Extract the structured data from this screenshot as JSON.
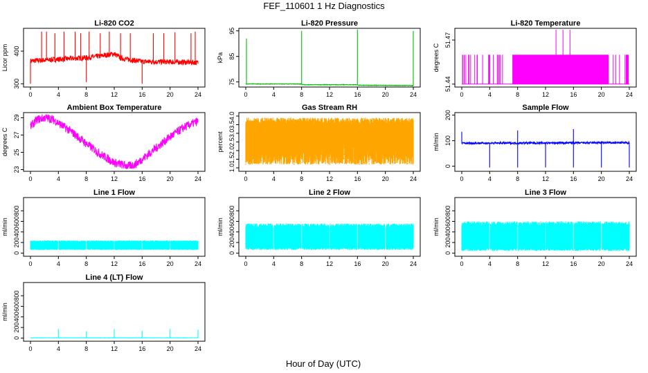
{
  "title": "FEF_110601  1 Hz Diagnostics",
  "xlabel_common": "Hour of Day (UTC)",
  "chart_data": [
    {
      "type": "line",
      "title": "Li-820 CO2",
      "ylabel": "Licor ppm",
      "xlim": [
        0,
        24
      ],
      "ylim": [
        290,
        470
      ],
      "yticks": [
        300,
        400
      ],
      "xticks": [
        0,
        4,
        8,
        12,
        16,
        20,
        24
      ],
      "color": "#ff0000",
      "series": [
        {
          "base": [
            [
              0,
              370
            ],
            [
              4,
              375
            ],
            [
              8,
              380
            ],
            [
              10,
              385
            ],
            [
              12,
              392
            ],
            [
              13,
              378
            ],
            [
              16,
              368
            ],
            [
              20,
              367
            ],
            [
              24,
              365
            ]
          ],
          "noise": 8,
          "spikes": [
            [
              1.6,
              460
            ],
            [
              2.3,
              460
            ],
            [
              3.5,
              455
            ],
            [
              4.8,
              460
            ],
            [
              6.4,
              460
            ],
            [
              7.2,
              455
            ],
            [
              8.4,
              460
            ],
            [
              10,
              455
            ],
            [
              11.3,
              460
            ],
            [
              12.9,
              455
            ],
            [
              14.3,
              455
            ],
            [
              17.6,
              455
            ],
            [
              19.1,
              455
            ],
            [
              20.7,
              458
            ],
            [
              23,
              455
            ],
            [
              23.6,
              460
            ]
          ],
          "dips": [
            [
              0,
              300
            ],
            [
              8,
              305
            ],
            [
              16,
              300
            ]
          ]
        }
      ]
    },
    {
      "type": "line",
      "title": "Li-820 Pressure",
      "ylabel": "kPa",
      "xlim": [
        0,
        24
      ],
      "ylim": [
        73,
        96
      ],
      "yticks": [
        75,
        85,
        95
      ],
      "xticks": [
        0,
        4,
        8,
        12,
        16,
        20,
        24
      ],
      "color": "#00c000",
      "series": [
        {
          "base": [
            [
              0,
              74.2
            ],
            [
              8,
              74.2
            ],
            [
              8.1,
              73.9
            ],
            [
              16,
              73.9
            ],
            [
              16.2,
              73.7
            ],
            [
              23.5,
              73.6
            ],
            [
              24,
              73.5
            ]
          ],
          "noise": 0.1,
          "spikes": [
            [
              0.1,
              92
            ],
            [
              8,
              95
            ],
            [
              16,
              95.5
            ],
            [
              24,
              95
            ]
          ],
          "dips": []
        }
      ]
    },
    {
      "type": "line",
      "title": "Li-820 Temperature",
      "ylabel": "degrees C",
      "xlim": [
        0,
        24
      ],
      "ylim": [
        51.438,
        51.478
      ],
      "yticks": [
        51.44,
        51.47
      ],
      "xticks": [
        0,
        4,
        8,
        12,
        16,
        20,
        24
      ],
      "color": "#ff00ff",
      "series": [
        {
          "mode": "toggle",
          "low": 51.44,
          "high": 51.46,
          "dense": [
            [
              7.3,
              21
            ]
          ],
          "extra_high": [
            [
              13.5,
              51.477
            ],
            [
              14.5,
              51.477
            ],
            [
              15.5,
              51.477
            ]
          ]
        }
      ]
    },
    {
      "type": "line",
      "title": "Ambient Box Temperature",
      "ylabel": "degrees C",
      "xlim": [
        0,
        24
      ],
      "ylim": [
        22.8,
        29.6
      ],
      "yticks": [
        23,
        25,
        27,
        29
      ],
      "xticks": [
        0,
        4,
        8,
        12,
        16,
        20,
        24
      ],
      "color": "#ff00ff",
      "series": [
        {
          "base": [
            [
              0,
              28
            ],
            [
              1,
              28.8
            ],
            [
              2,
              29
            ],
            [
              3,
              28.9
            ],
            [
              4,
              28.4
            ],
            [
              6,
              27.3
            ],
            [
              8,
              26
            ],
            [
              10,
              24.8
            ],
            [
              12,
              23.8
            ],
            [
              13,
              23.6
            ],
            [
              14,
              23.4
            ],
            [
              15,
              23.6
            ],
            [
              16,
              24.2
            ],
            [
              18,
              25.5
            ],
            [
              20,
              26.8
            ],
            [
              22,
              27.9
            ],
            [
              24,
              28.6
            ]
          ],
          "noise": 0.5,
          "spikes": [],
          "dips": []
        }
      ]
    },
    {
      "type": "scatter",
      "title": "Gas Stream RH",
      "ylabel": "percent",
      "xlim": [
        0,
        24
      ],
      "ylim": [
        0.8,
        4.2
      ],
      "yticks": [
        1.0,
        1.5,
        2.0,
        2.5,
        3.0,
        3.5,
        4.0
      ],
      "xticks": [
        0,
        4,
        8,
        12,
        16,
        20,
        24
      ],
      "color": "#ffa500",
      "series": [
        {
          "mode": "band",
          "low": 1.2,
          "high": 3.9
        }
      ]
    },
    {
      "type": "line",
      "title": "Sample Flow",
      "ylabel": "ml/min",
      "xlim": [
        0,
        24
      ],
      "ylim": [
        -20,
        210
      ],
      "yticks": [
        0,
        100,
        200
      ],
      "xticks": [
        0,
        4,
        8,
        12,
        16,
        20,
        24
      ],
      "color": "#0000ff",
      "series": [
        {
          "base": [
            [
              0,
              90
            ],
            [
              24,
              92
            ]
          ],
          "noise": 4,
          "spikes": [
            [
              0,
              135
            ],
            [
              8,
              140
            ],
            [
              16,
              145
            ]
          ],
          "dips": [
            [
              4,
              -5
            ],
            [
              8,
              -5
            ],
            [
              12,
              -5
            ],
            [
              16,
              -5
            ],
            [
              20,
              -5
            ],
            [
              24,
              -5
            ]
          ]
        }
      ]
    },
    {
      "type": "line",
      "title": "Line 1 Flow",
      "ylabel": "ml/min",
      "xlim": [
        0,
        24
      ],
      "ylim": [
        -60,
        1050
      ],
      "yticks": [
        0,
        200,
        400,
        600,
        800
      ],
      "xticks": [
        0,
        4,
        8,
        12,
        16,
        20,
        24
      ],
      "color": "#00ffff",
      "series": [
        {
          "mode": "band",
          "low": 60,
          "high": 240,
          "gaps": [
            4,
            8,
            12,
            16,
            20
          ]
        }
      ]
    },
    {
      "type": "line",
      "title": "Line 2 Flow",
      "ylabel": "ml/min",
      "xlim": [
        0,
        24
      ],
      "ylim": [
        -60,
        1050
      ],
      "yticks": [
        0,
        200,
        400,
        600,
        800
      ],
      "xticks": [
        0,
        4,
        8,
        12,
        16,
        20,
        24
      ],
      "color": "#00ffff",
      "series": [
        {
          "mode": "band",
          "low": 60,
          "high": 560,
          "gaps": [
            4,
            8,
            12,
            16,
            20
          ]
        }
      ]
    },
    {
      "type": "line",
      "title": "Line 3 Flow",
      "ylabel": "ml/min",
      "xlim": [
        0,
        24
      ],
      "ylim": [
        -60,
        1050
      ],
      "yticks": [
        0,
        200,
        400,
        600,
        800
      ],
      "xticks": [
        0,
        4,
        8,
        12,
        16,
        20,
        24
      ],
      "color": "#00ffff",
      "series": [
        {
          "mode": "band",
          "low": 40,
          "high": 600,
          "gaps": [
            4,
            8,
            12,
            16,
            20
          ]
        }
      ]
    },
    {
      "type": "line",
      "title": "Line 4 (LT) Flow",
      "ylabel": "ml/min",
      "xlim": [
        0,
        24
      ],
      "ylim": [
        -60,
        1050
      ],
      "yticks": [
        0,
        200,
        400,
        600,
        800
      ],
      "xticks": [
        0,
        4,
        8,
        12,
        16,
        20,
        24
      ],
      "color": "#00ffff",
      "series": [
        {
          "base": [
            [
              0,
              5
            ],
            [
              24,
              5
            ]
          ],
          "noise": 2,
          "spikes": [
            [
              4,
              170
            ],
            [
              8,
              130
            ],
            [
              12,
              170
            ],
            [
              16,
              140
            ],
            [
              20,
              170
            ],
            [
              24,
              160
            ]
          ],
          "dips": []
        }
      ]
    }
  ]
}
